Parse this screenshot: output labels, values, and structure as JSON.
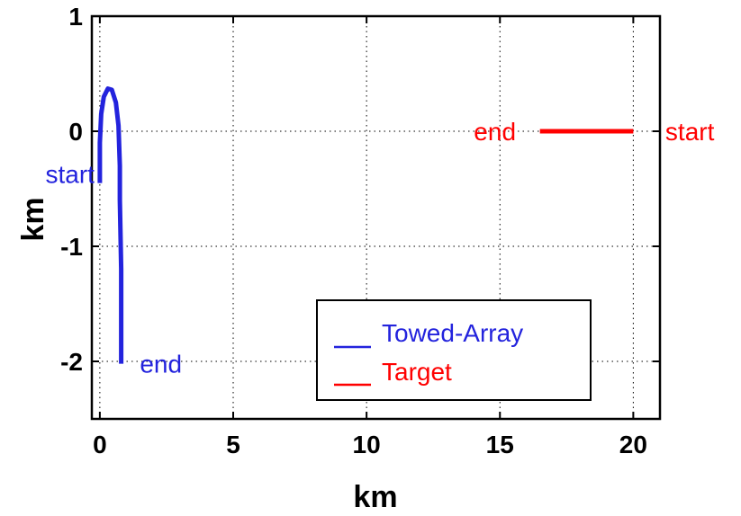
{
  "chart_data": {
    "type": "line",
    "title": "",
    "xlabel": "km",
    "ylabel": "km",
    "xlim": [
      -0.3,
      21
    ],
    "ylim": [
      -2.5,
      1
    ],
    "xticks": [
      0,
      5,
      10,
      15,
      20
    ],
    "yticks": [
      1,
      0,
      -1,
      -2
    ],
    "xtick_labels": [
      "0",
      "5",
      "10",
      "15",
      "20"
    ],
    "ytick_labels": [
      "1",
      "0",
      "-1",
      "-2"
    ],
    "grid": true,
    "legend_placement": "bottom-right",
    "series": [
      {
        "name": "Towed-Array",
        "color": "#2323dd",
        "x": [
          0.0,
          0.0,
          0.05,
          0.15,
          0.3,
          0.45,
          0.6,
          0.7,
          0.75,
          0.75,
          0.8,
          0.8
        ],
        "y": [
          -0.45,
          -0.1,
          0.15,
          0.3,
          0.37,
          0.36,
          0.25,
          0.05,
          -0.3,
          -0.6,
          -1.2,
          -2.02
        ]
      },
      {
        "name": "Target",
        "color": "#ff0000",
        "x": [
          20.0,
          16.5
        ],
        "y": [
          0.0,
          0.0
        ]
      }
    ],
    "annotations": [
      {
        "text": "start",
        "x": -0.2,
        "y": -0.37,
        "color": "#2323dd",
        "anchor": "end"
      },
      {
        "text": "end",
        "x": 1.5,
        "y": -2.02,
        "color": "#2323dd",
        "anchor": "start"
      },
      {
        "text": "end",
        "x": 15.6,
        "y": 0.0,
        "color": "#ff0000",
        "anchor": "end"
      },
      {
        "text": "start",
        "x": 21.2,
        "y": 0.0,
        "color": "#ff0000",
        "anchor": "start"
      }
    ]
  }
}
